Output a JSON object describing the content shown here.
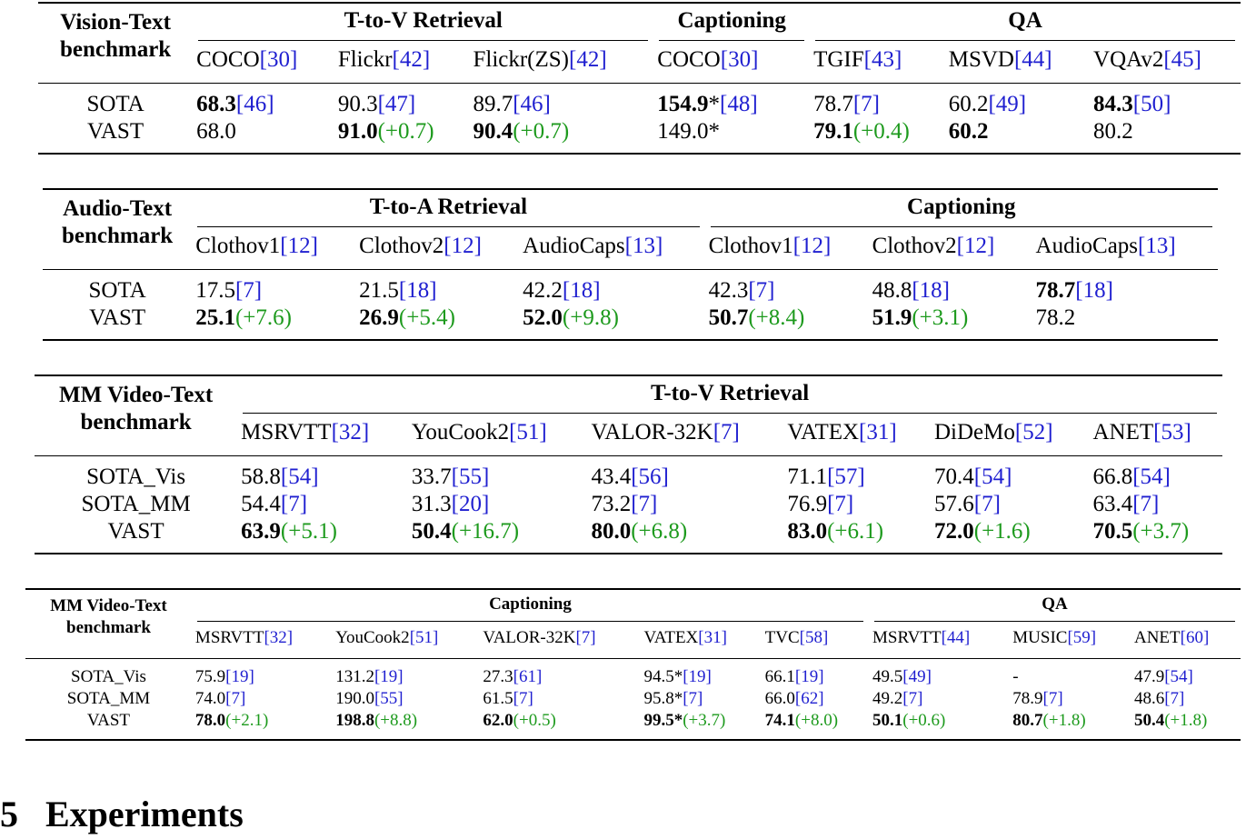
{
  "tables": [
    {
      "corner": [
        "Vision-Text",
        "benchmark"
      ],
      "groups": [
        {
          "label": "T-to-V Retrieval",
          "span": 3
        },
        {
          "label": "Captioning",
          "span": 1
        },
        {
          "label": "QA",
          "span": 3
        }
      ],
      "columns": [
        [
          {
            "plain": "COCO"
          },
          {
            "ref": "[30]"
          }
        ],
        [
          {
            "plain": "Flickr"
          },
          {
            "ref": "[42]"
          }
        ],
        [
          {
            "plain": "Flickr(ZS)"
          },
          {
            "ref": "[42]"
          }
        ],
        [
          {
            "plain": "COCO"
          },
          {
            "ref": "[30]"
          }
        ],
        [
          {
            "plain": "TGIF"
          },
          {
            "ref": "[43]"
          }
        ],
        [
          {
            "plain": "MSVD"
          },
          {
            "ref": "[44]"
          }
        ],
        [
          {
            "plain": "VQAv2"
          },
          {
            "ref": "[45]"
          }
        ]
      ],
      "rows": [
        {
          "label": "SOTA",
          "cells": [
            [
              {
                "bold": "68.3"
              },
              {
                "ref": "[46]"
              }
            ],
            [
              {
                "plain": "90.3"
              },
              {
                "ref": "[47]"
              }
            ],
            [
              {
                "plain": "89.7"
              },
              {
                "ref": "[46]"
              }
            ],
            [
              {
                "bold": "154.9"
              },
              {
                "plain": "*"
              },
              {
                "ref": "[48]"
              }
            ],
            [
              {
                "plain": "78.7"
              },
              {
                "ref": "[7]"
              }
            ],
            [
              {
                "plain": "60.2"
              },
              {
                "ref": "[49]"
              }
            ],
            [
              {
                "bold": "84.3"
              },
              {
                "ref": "[50]"
              }
            ]
          ]
        },
        {
          "label": "VAST",
          "cells": [
            [
              {
                "plain": "68.0"
              }
            ],
            [
              {
                "bold": "91.0"
              },
              {
                "gain": "(+0.7)"
              }
            ],
            [
              {
                "bold": "90.4"
              },
              {
                "gain": "(+0.7)"
              }
            ],
            [
              {
                "plain": "149.0*"
              }
            ],
            [
              {
                "bold": "79.1"
              },
              {
                "gain": "(+0.4)"
              }
            ],
            [
              {
                "bold": "60.2"
              }
            ],
            [
              {
                "plain": "80.2"
              }
            ]
          ]
        }
      ]
    },
    {
      "corner": [
        "Audio-Text",
        "benchmark"
      ],
      "groups": [
        {
          "label": "T-to-A Retrieval",
          "span": 3
        },
        {
          "label": "Captioning",
          "span": 3
        }
      ],
      "columns": [
        [
          {
            "plain": "Clothov1"
          },
          {
            "ref": "[12]"
          }
        ],
        [
          {
            "plain": "Clothov2"
          },
          {
            "ref": "[12]"
          }
        ],
        [
          {
            "plain": "AudioCaps"
          },
          {
            "ref": "[13]"
          }
        ],
        [
          {
            "plain": "Clothov1"
          },
          {
            "ref": "[12]"
          }
        ],
        [
          {
            "plain": "Clothov2"
          },
          {
            "ref": "[12]"
          }
        ],
        [
          {
            "plain": "AudioCaps"
          },
          {
            "ref": "[13]"
          }
        ]
      ],
      "rows": [
        {
          "label": "SOTA",
          "cells": [
            [
              {
                "plain": "17.5"
              },
              {
                "ref": "[7]"
              }
            ],
            [
              {
                "plain": "21.5"
              },
              {
                "ref": "[18]"
              }
            ],
            [
              {
                "plain": "42.2"
              },
              {
                "ref": "[18]"
              }
            ],
            [
              {
                "plain": "42.3"
              },
              {
                "ref": "[7]"
              }
            ],
            [
              {
                "plain": "48.8"
              },
              {
                "ref": "[18]"
              }
            ],
            [
              {
                "bold": "78.7"
              },
              {
                "ref": "[18]"
              }
            ]
          ]
        },
        {
          "label": "VAST",
          "cells": [
            [
              {
                "bold": "25.1"
              },
              {
                "gain": "(+7.6)"
              }
            ],
            [
              {
                "bold": "26.9"
              },
              {
                "gain": "(+5.4)"
              }
            ],
            [
              {
                "bold": "52.0"
              },
              {
                "gain": "(+9.8)"
              }
            ],
            [
              {
                "bold": "50.7"
              },
              {
                "gain": "(+8.4)"
              }
            ],
            [
              {
                "bold": "51.9"
              },
              {
                "gain": "(+3.1)"
              }
            ],
            [
              {
                "plain": "78.2"
              }
            ]
          ]
        }
      ]
    },
    {
      "corner": [
        "MM Video-Text",
        "benchmark"
      ],
      "groups": [
        {
          "label": "T-to-V Retrieval",
          "span": 6
        }
      ],
      "columns": [
        [
          {
            "plain": "MSRVTT"
          },
          {
            "ref": "[32]"
          }
        ],
        [
          {
            "plain": "YouCook2"
          },
          {
            "ref": "[51]"
          }
        ],
        [
          {
            "plain": "VALOR-32K"
          },
          {
            "ref": "[7]"
          }
        ],
        [
          {
            "plain": "VATEX"
          },
          {
            "ref": "[31]"
          }
        ],
        [
          {
            "plain": "DiDeMo"
          },
          {
            "ref": "[52]"
          }
        ],
        [
          {
            "plain": "ANET"
          },
          {
            "ref": "[53]"
          }
        ]
      ],
      "rows": [
        {
          "label": "SOTA_Vis",
          "cells": [
            [
              {
                "plain": "58.8"
              },
              {
                "ref": "[54]"
              }
            ],
            [
              {
                "plain": "33.7"
              },
              {
                "ref": "[55]"
              }
            ],
            [
              {
                "plain": "43.4"
              },
              {
                "ref": "[56]"
              }
            ],
            [
              {
                "plain": "71.1"
              },
              {
                "ref": "[57]"
              }
            ],
            [
              {
                "plain": "70.4"
              },
              {
                "ref": "[54]"
              }
            ],
            [
              {
                "plain": "66.8"
              },
              {
                "ref": "[54]"
              }
            ]
          ]
        },
        {
          "label": "SOTA_MM",
          "cells": [
            [
              {
                "plain": "54.4"
              },
              {
                "ref": "[7]"
              }
            ],
            [
              {
                "plain": "31.3"
              },
              {
                "ref": "[20]"
              }
            ],
            [
              {
                "plain": "73.2"
              },
              {
                "ref": "[7]"
              }
            ],
            [
              {
                "plain": "76.9"
              },
              {
                "ref": "[7]"
              }
            ],
            [
              {
                "plain": "57.6"
              },
              {
                "ref": "[7]"
              }
            ],
            [
              {
                "plain": "63.4"
              },
              {
                "ref": "[7]"
              }
            ]
          ]
        },
        {
          "label": "VAST",
          "cells": [
            [
              {
                "bold": "63.9"
              },
              {
                "gain": "(+5.1)"
              }
            ],
            [
              {
                "bold": "50.4"
              },
              {
                "gain": "(+16.7)"
              }
            ],
            [
              {
                "bold": "80.0"
              },
              {
                "gain": "(+6.8)"
              }
            ],
            [
              {
                "bold": "83.0"
              },
              {
                "gain": "(+6.1)"
              }
            ],
            [
              {
                "bold": "72.0"
              },
              {
                "gain": "(+1.6)"
              }
            ],
            [
              {
                "bold": "70.5"
              },
              {
                "gain": "(+3.7)"
              }
            ]
          ]
        }
      ]
    },
    {
      "corner": [
        "MM Video-Text",
        "benchmark"
      ],
      "groups": [
        {
          "label": "Captioning",
          "span": 5
        },
        {
          "label": "QA",
          "span": 3
        }
      ],
      "columns": [
        [
          {
            "plain": "MSRVTT"
          },
          {
            "ref": "[32]"
          }
        ],
        [
          {
            "plain": "YouCook2"
          },
          {
            "ref": "[51]"
          }
        ],
        [
          {
            "plain": "VALOR-32K"
          },
          {
            "ref": "[7]"
          }
        ],
        [
          {
            "plain": "VATEX"
          },
          {
            "ref": "[31]"
          }
        ],
        [
          {
            "plain": "TVC"
          },
          {
            "ref": "[58]"
          }
        ],
        [
          {
            "plain": "MSRVTT"
          },
          {
            "ref": "[44]"
          }
        ],
        [
          {
            "plain": "MUSIC"
          },
          {
            "ref": "[59]"
          }
        ],
        [
          {
            "plain": "ANET"
          },
          {
            "ref": "[60]"
          }
        ]
      ],
      "rows": [
        {
          "label": "SOTA_Vis",
          "cells": [
            [
              {
                "plain": "75.9"
              },
              {
                "ref": "[19]"
              }
            ],
            [
              {
                "plain": "131.2"
              },
              {
                "ref": "[19]"
              }
            ],
            [
              {
                "plain": "27.3"
              },
              {
                "ref": "[61]"
              }
            ],
            [
              {
                "plain": "94.5*"
              },
              {
                "ref": "[19]"
              }
            ],
            [
              {
                "plain": "66.1"
              },
              {
                "ref": "[19]"
              }
            ],
            [
              {
                "plain": "49.5"
              },
              {
                "ref": "[49]"
              }
            ],
            [
              {
                "plain": "-"
              }
            ],
            [
              {
                "plain": "47.9"
              },
              {
                "ref": "[54]"
              }
            ]
          ]
        },
        {
          "label": "SOTA_MM",
          "cells": [
            [
              {
                "plain": "74.0"
              },
              {
                "ref": "[7]"
              }
            ],
            [
              {
                "plain": "190.0"
              },
              {
                "ref": "[55]"
              }
            ],
            [
              {
                "plain": "61.5"
              },
              {
                "ref": "[7]"
              }
            ],
            [
              {
                "plain": "95.8*"
              },
              {
                "ref": "[7]"
              }
            ],
            [
              {
                "plain": "66.0"
              },
              {
                "ref": "[62]"
              }
            ],
            [
              {
                "plain": "49.2"
              },
              {
                "ref": "[7]"
              }
            ],
            [
              {
                "plain": "78.9"
              },
              {
                "ref": "[7]"
              }
            ],
            [
              {
                "plain": "48.6"
              },
              {
                "ref": "[7]"
              }
            ]
          ]
        },
        {
          "label": "VAST",
          "cells": [
            [
              {
                "bold": "78.0"
              },
              {
                "gain": "(+2.1)"
              }
            ],
            [
              {
                "bold": "198.8"
              },
              {
                "gain": "(+8.8)"
              }
            ],
            [
              {
                "bold": "62.0"
              },
              {
                "gain": "(+0.5)"
              }
            ],
            [
              {
                "bold": "99.5*"
              },
              {
                "gain": "(+3.7)"
              }
            ],
            [
              {
                "bold": "74.1"
              },
              {
                "gain": "(+8.0)"
              }
            ],
            [
              {
                "bold": "50.1"
              },
              {
                "gain": "(+0.6)"
              }
            ],
            [
              {
                "bold": "80.7"
              },
              {
                "gain": "(+1.8)"
              }
            ],
            [
              {
                "bold": "50.4"
              },
              {
                "gain": "(+1.8)"
              }
            ]
          ]
        }
      ]
    }
  ],
  "heading": {
    "number": "5",
    "title": "Experiments"
  }
}
